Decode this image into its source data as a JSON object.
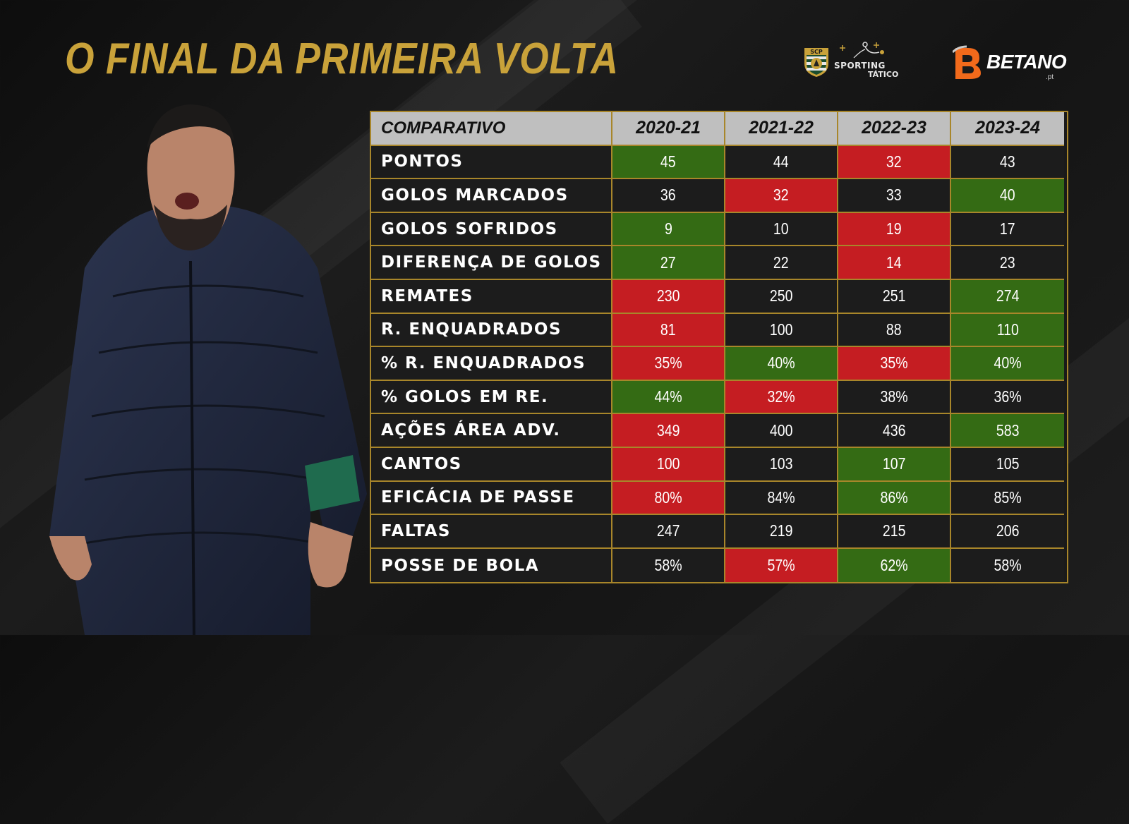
{
  "title": "O FINAL DA PRIMEIRA VOLTA",
  "logos": {
    "sporting_crest_text": "SCP",
    "sporting_word1": "SPORTING",
    "sporting_word2": "TÁTICO",
    "betano_word": "BETANO",
    "betano_suffix": ".pt"
  },
  "colors": {
    "title": "#c9a23a",
    "border": "#a8862a",
    "best": "#346b14",
    "worst": "#c51d22",
    "neutral": "#1c1c1c",
    "header": "#bfbfbf"
  },
  "table": {
    "header": [
      "COMPARATIVO",
      "2020-21",
      "2021-22",
      "2022-23",
      "2023-24"
    ],
    "rows": [
      {
        "label": "PONTOS",
        "values": [
          "45",
          "44",
          "32",
          "43"
        ],
        "status": [
          "best",
          "",
          "worst",
          ""
        ]
      },
      {
        "label": "GOLOS MARCADOS",
        "values": [
          "36",
          "32",
          "33",
          "40"
        ],
        "status": [
          "",
          "worst",
          "",
          "best"
        ]
      },
      {
        "label": "GOLOS SOFRIDOS",
        "values": [
          "9",
          "10",
          "19",
          "17"
        ],
        "status": [
          "best",
          "",
          "worst",
          ""
        ]
      },
      {
        "label": "DIFERENÇA DE GOLOS",
        "values": [
          "27",
          "22",
          "14",
          "23"
        ],
        "status": [
          "best",
          "",
          "worst",
          ""
        ]
      },
      {
        "label": "REMATES",
        "values": [
          "230",
          "250",
          "251",
          "274"
        ],
        "status": [
          "worst",
          "",
          "",
          "best"
        ]
      },
      {
        "label": "R. ENQUADRADOS",
        "values": [
          "81",
          "100",
          "88",
          "110"
        ],
        "status": [
          "worst",
          "",
          "",
          "best"
        ]
      },
      {
        "label": "% R. ENQUADRADOS",
        "values": [
          "35%",
          "40%",
          "35%",
          "40%"
        ],
        "status": [
          "worst",
          "best",
          "worst",
          "best"
        ]
      },
      {
        "label": "% GOLOS EM RE.",
        "values": [
          "44%",
          "32%",
          "38%",
          "36%"
        ],
        "status": [
          "best",
          "worst",
          "",
          ""
        ]
      },
      {
        "label": "AÇÕES ÁREA ADV.",
        "values": [
          "349",
          "400",
          "436",
          "583"
        ],
        "status": [
          "worst",
          "",
          "",
          "best"
        ]
      },
      {
        "label": "CANTOS",
        "values": [
          "100",
          "103",
          "107",
          "105"
        ],
        "status": [
          "worst",
          "",
          "best",
          ""
        ]
      },
      {
        "label": "EFICÁCIA DE PASSE",
        "values": [
          "80%",
          "84%",
          "86%",
          "85%"
        ],
        "status": [
          "worst",
          "",
          "best",
          ""
        ]
      },
      {
        "label": "FALTAS",
        "values": [
          "247",
          "219",
          "215",
          "206"
        ],
        "status": [
          "",
          "",
          "",
          ""
        ]
      },
      {
        "label": "POSSE DE BOLA",
        "values": [
          "58%",
          "57%",
          "62%",
          "58%"
        ],
        "status": [
          "",
          "worst",
          "best",
          ""
        ]
      }
    ]
  }
}
